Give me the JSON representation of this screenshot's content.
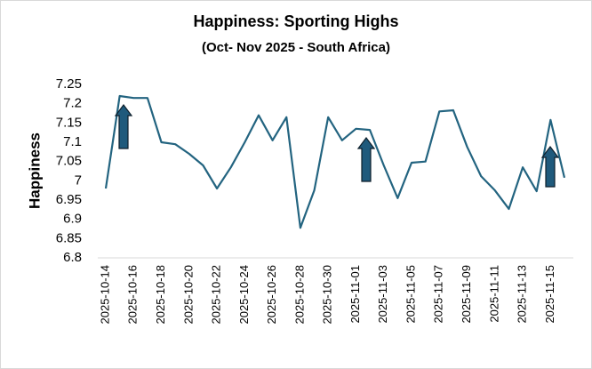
{
  "chart_data": {
    "type": "line",
    "title": "Happiness: Sporting Highs",
    "subtitle": "(Oct- Nov 2025 - South Africa)",
    "y_label": "Happiness",
    "categories": [
      "2025-10-14",
      null,
      "2025-10-16",
      null,
      "2025-10-18",
      null,
      "2025-10-20",
      null,
      "2025-10-22",
      null,
      "2025-10-24",
      null,
      "2025-10-26",
      null,
      "2025-10-28",
      null,
      "2025-10-30",
      null,
      "2025-11-01",
      null,
      "2025-11-03",
      null,
      "2025-11-05",
      null,
      "2025-11-07",
      null,
      "2025-11-09",
      null,
      "2025-11-11",
      null,
      "2025-11-13",
      null,
      "2025-11-15",
      null
    ],
    "series": [
      {
        "name": "Happiness",
        "color": "#236480",
        "values": [
          6.98,
          7.22,
          7.215,
          7.215,
          7.1,
          7.095,
          7.07,
          7.04,
          6.98,
          7.035,
          7.1,
          7.17,
          7.105,
          7.165,
          6.878,
          6.975,
          7.165,
          7.105,
          7.135,
          7.132,
          7.04,
          6.955,
          7.047,
          7.05,
          7.18,
          7.183,
          7.088,
          7.012,
          6.975,
          6.927,
          7.035,
          6.973,
          7.158,
          7.008
        ]
      }
    ],
    "ylim": [
      6.8,
      7.25
    ],
    "yticks": [
      6.8,
      6.85,
      6.9,
      6.95,
      7,
      7.05,
      7.1,
      7.15,
      7.2,
      7.25
    ],
    "grid": false
  }
}
